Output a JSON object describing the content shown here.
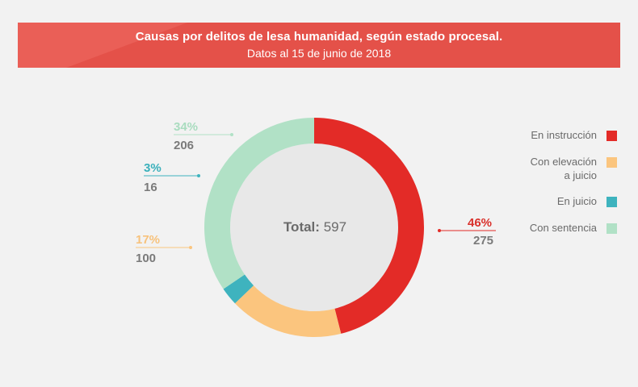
{
  "header": {
    "title": "Causas por delitos de lesa humanidad, según estado procesal.",
    "subtitle": "Datos al 15 de junio de 2018"
  },
  "chart_data": {
    "type": "pie",
    "title": "Causas por delitos de lesa humanidad, según estado procesal.",
    "subtitle": "Datos al 15 de junio de 2018",
    "categories": [
      "En instrucción",
      "Con elevación a juicio",
      "En juicio",
      "Con sentencia"
    ],
    "values": [
      275,
      100,
      16,
      206
    ],
    "percent_labels": [
      "46%",
      "17%",
      "3%",
      "34%"
    ],
    "count_labels": [
      "275",
      "100",
      "16",
      "206"
    ],
    "colors": [
      "#e32b27",
      "#fbc57e",
      "#3eb3be",
      "#b1e1c6"
    ],
    "total_label": "Total:",
    "total_value": "597",
    "legend_placement": "right",
    "legend": [
      {
        "line1": "En instrucción",
        "line2": ""
      },
      {
        "line1": "Con elevación",
        "line2": "a juicio"
      },
      {
        "line1": "En juicio",
        "line2": ""
      },
      {
        "line1": "Con sentencia",
        "line2": ""
      }
    ]
  }
}
